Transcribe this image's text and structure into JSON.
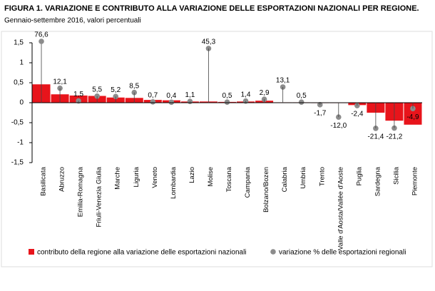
{
  "chart_data": {
    "type": "bar",
    "title": "FIGURA 1. VARIAZIONE E CONTRIBUTO ALLA VARIAZIONE DELLE ESPORTAZIONI NAZIONALI PER REGIONE.",
    "subtitle": "Gennaio-settembre 2016, valori percentuali",
    "categories": [
      "Basilicata",
      "Abruzzo",
      "Emilia-Romagna",
      "Friuli-Venezia Giulia",
      "Marche",
      "Liguria",
      "Veneto",
      "Lombardia",
      "Lazio",
      "Molise",
      "Toscana",
      "Campania",
      "Bolzano/Bozen",
      "Calabria",
      "Umbria",
      "Trento",
      "Valle d'Aosta/Vallée d'Aoste",
      "Puglia",
      "Sardegna",
      "Sicilia",
      "Piemonte"
    ],
    "series": [
      {
        "name": "contributo della regione alla variazione delle esportazioni nazionali",
        "color": "#e8141b",
        "values": [
          0.46,
          0.21,
          0.18,
          0.17,
          0.13,
          0.12,
          0.07,
          0.06,
          0.03,
          0.03,
          0.02,
          0.03,
          0.05,
          0.01,
          0.01,
          -0.01,
          -0.01,
          -0.06,
          -0.25,
          -0.45,
          -0.55
        ]
      },
      {
        "name": "variazione % delle esportazioni regionali",
        "color": "#8c8c8c",
        "axis": "y2",
        "values": [
          76.6,
          12.1,
          1.5,
          5.5,
          5.2,
          8.5,
          0.7,
          0.4,
          1.1,
          45.3,
          0.5,
          1.4,
          2.9,
          13.1,
          0.5,
          -1.7,
          -12.0,
          -2.4,
          -21.4,
          -21.2,
          -4.9
        ],
        "value_labels": [
          "76,6",
          "12,1",
          "1,5",
          "5,5",
          "5,2",
          "8,5",
          "0,7",
          "0,4",
          "1,1",
          "45,3",
          "0,5",
          "1,4",
          "2,9",
          "13,1",
          "0,5",
          "-1,7",
          "-12,0",
          "-2,4",
          "-21,4",
          "-21,2",
          "-4,9"
        ]
      }
    ],
    "ylim": [
      -1.5,
      1.5
    ],
    "yticks": [
      {
        "value": 1.5,
        "label": "1,5"
      },
      1,
      {
        "value": 0.5,
        "label": "0,5"
      },
      0,
      {
        "value": -0.5,
        "label": "-0,5"
      },
      -1,
      {
        "value": -1.5,
        "label": "-1,5"
      }
    ],
    "y2lim": [
      -50,
      50
    ]
  }
}
